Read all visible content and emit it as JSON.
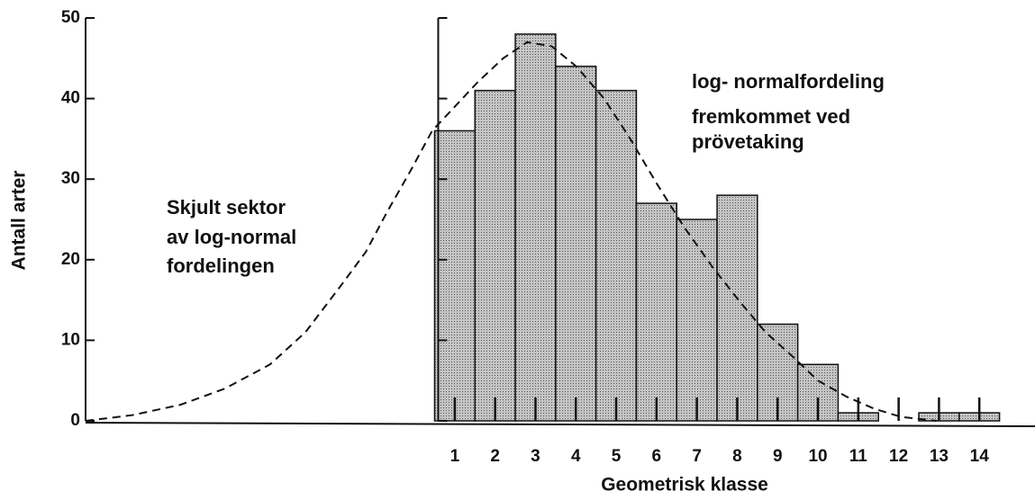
{
  "chart_data": {
    "type": "bar",
    "x": [
      1,
      2,
      3,
      4,
      5,
      6,
      7,
      8,
      9,
      10,
      11,
      12,
      13,
      14
    ],
    "values": [
      36,
      41,
      48,
      44,
      41,
      27,
      25,
      28,
      12,
      7,
      1,
      0,
      1,
      1
    ],
    "color": "#c4c4c4",
    "xlim": [
      -8.15,
      15
    ],
    "ylim": [
      0,
      50
    ],
    "yticks": [
      0,
      10,
      20,
      30,
      40,
      50
    ],
    "x_label": "Geometrisk klasse",
    "y_label": "Antall arter",
    "curve": {
      "x": [
        -8.15,
        -7,
        -5.8,
        -4.7,
        -3.58,
        -2.7,
        -1.79,
        -1.2,
        -0.67,
        -0.1,
        0.44,
        1,
        1.56,
        2.2,
        2.79,
        3.4,
        4.01,
        4.7,
        5.35,
        6,
        6.69,
        7.4,
        8.03,
        8.7,
        9.37,
        10,
        10.71,
        11.4,
        12.05,
        12.94
      ],
      "y": [
        0,
        0.7,
        2,
        4,
        7,
        11,
        17,
        21,
        26,
        31,
        36,
        39,
        42,
        45,
        47,
        46.5,
        44,
        40,
        35,
        29.5,
        24,
        19,
        15,
        11,
        8,
        5,
        3,
        1.5,
        0.5,
        0
      ]
    },
    "annotations": [
      [
        "Skjult sektor",
        "av log-normal",
        "fordelingen"
      ],
      [
        "log- normalfordeling",
        "fremkommet ved",
        "prövetaking"
      ]
    ]
  }
}
